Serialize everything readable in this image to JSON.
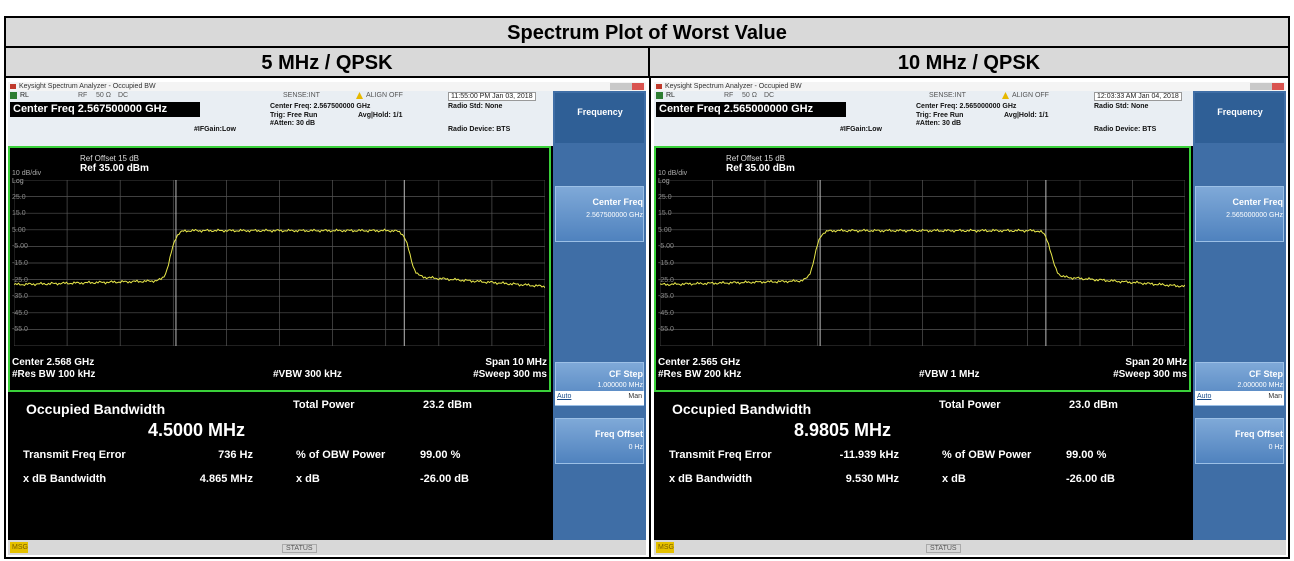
{
  "header": {
    "title": "Spectrum Plot of Worst Value"
  },
  "panels": [
    {
      "heading": "5 MHz / QPSK",
      "screen": {
        "app_title": "Keysight Spectrum Analyzer - Occupied BW",
        "rl": "RL",
        "rf": "RF",
        "impedance": "50 Ω",
        "coupling": "DC",
        "sense": "SENSE:INT",
        "align": "ALIGN OFF",
        "timestamp": "11:55:00 PM Jan 03, 2018",
        "center_freq_main": "Center Freq 2.567500000 GHz",
        "center_freq_small": "Center Freq: 2.567500000 GHz",
        "trig": "Trig: Free Run",
        "avg": "Avg|Hold: 1/1",
        "ifgain": "#IFGain:Low",
        "atten": "#Atten: 30 dB",
        "radio_std": "Radio Std: None",
        "radio_device": "Radio Device: BTS",
        "scale": "10 dB/div",
        "log": "Log",
        "ref_offset": "Ref Offset 15 dB",
        "ref": "Ref 35.00 dBm",
        "y_labels": [
          "25.0",
          "15.0",
          "5.00",
          "-5.00",
          "-15.0",
          "-25.0",
          "-35.0",
          "-45.0",
          "-55.0"
        ],
        "center": "Center 2.568 GHz",
        "res_bw": "#Res BW 100 kHz",
        "vbw": "#VBW 300 kHz",
        "span": "Span 10 MHz",
        "sweep": "#Sweep 300 ms",
        "results": {
          "obw_label": "Occupied Bandwidth",
          "obw_value": "4.5000 MHz",
          "total_power_label": "Total Power",
          "total_power": "23.2 dBm",
          "tfe_label": "Transmit Freq Error",
          "tfe": "736 Hz",
          "obw_pct_label": "% of OBW Power",
          "obw_pct": "99.00 %",
          "xdb_bw_label": "x dB Bandwidth",
          "xdb_bw": "4.865 MHz",
          "xdb_label": "x dB",
          "xdb": "-26.00 dB"
        },
        "softkeys": {
          "menu": "Frequency",
          "center_freq": "Center Freq",
          "center_freq_value": "2.567500000 GHz",
          "cf_step": "CF Step",
          "cf_step_value": "1.000000 MHz",
          "auto": "Auto",
          "man": "Man",
          "freq_offset": "Freq Offset",
          "freq_offset_value": "0 Hz"
        },
        "msg": "MSG",
        "status": "STATUS"
      }
    },
    {
      "heading": "10 MHz / QPSK",
      "screen": {
        "app_title": "Keysight Spectrum Analyzer - Occupied BW",
        "rl": "RL",
        "rf": "RF",
        "impedance": "50 Ω",
        "coupling": "DC",
        "sense": "SENSE:INT",
        "align": "ALIGN OFF",
        "timestamp": "12:03:33 AM Jan 04, 2018",
        "center_freq_main": "Center Freq 2.565000000 GHz",
        "center_freq_small": "Center Freq: 2.565000000 GHz",
        "trig": "Trig: Free Run",
        "avg": "Avg|Hold: 1/1",
        "ifgain": "#IFGain:Low",
        "atten": "#Atten: 30 dB",
        "radio_std": "Radio Std: None",
        "radio_device": "Radio Device: BTS",
        "scale": "10 dB/div",
        "log": "Log",
        "ref_offset": "Ref Offset 15 dB",
        "ref": "Ref 35.00 dBm",
        "y_labels": [
          "25.0",
          "15.0",
          "5.00",
          "-5.00",
          "-15.0",
          "-25.0",
          "-35.0",
          "-45.0",
          "-55.0"
        ],
        "center": "Center 2.565 GHz",
        "res_bw": "#Res BW 200 kHz",
        "vbw": "#VBW 1 MHz",
        "span": "Span 20 MHz",
        "sweep": "#Sweep 300 ms",
        "results": {
          "obw_label": "Occupied Bandwidth",
          "obw_value": "8.9805 MHz",
          "total_power_label": "Total Power",
          "total_power": "23.0 dBm",
          "tfe_label": "Transmit Freq Error",
          "tfe": "-11.939 kHz",
          "obw_pct_label": "% of OBW Power",
          "obw_pct": "99.00 %",
          "xdb_bw_label": "x dB Bandwidth",
          "xdb_bw": "9.530 MHz",
          "xdb_label": "x dB",
          "xdb": "-26.00 dB"
        },
        "softkeys": {
          "menu": "Frequency",
          "center_freq": "Center Freq",
          "center_freq_value": "2.565000000 GHz",
          "cf_step": "CF Step",
          "cf_step_value": "2.000000 MHz",
          "auto": "Auto",
          "man": "Man",
          "freq_offset": "Freq Offset",
          "freq_offset_value": "0 Hz"
        },
        "msg": "MSG",
        "status": "STATUS"
      }
    }
  ]
}
